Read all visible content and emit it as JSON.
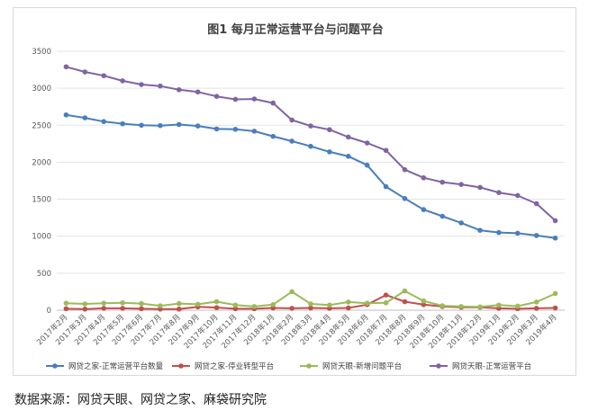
{
  "chart_data": {
    "type": "line",
    "title": "图1   每月正常运营平台与问题平台",
    "xlabel": "",
    "ylabel": "",
    "ylim": [
      0,
      3500
    ],
    "yticks": [
      0,
      500,
      1000,
      1500,
      2000,
      2500,
      3000,
      3500
    ],
    "grid": true,
    "legend_position": "bottom",
    "categories": [
      "2017年2月",
      "2017年3月",
      "2017年4月",
      "2017年5月",
      "2017年6月",
      "2017年7月",
      "2017年8月",
      "2017年9月",
      "2017年10月",
      "2017年11月",
      "2017年12月",
      "2018年1月",
      "2018年2月",
      "2018年3月",
      "2018年4月",
      "2018年5月",
      "2018年6月",
      "2018年7月",
      "2018年8月",
      "2018年9月",
      "2018年10月",
      "2018年11月",
      "2018年12月",
      "2019年1月",
      "2019年2月",
      "2019年3月",
      "2019年4月"
    ],
    "series": [
      {
        "name": "网贷之家-正常运营平台数量",
        "color": "#4a7ebb",
        "values": [
          2640,
          2600,
          2550,
          2520,
          2500,
          2495,
          2510,
          2490,
          2450,
          2445,
          2420,
          2350,
          2285,
          2215,
          2140,
          2080,
          1960,
          1670,
          1510,
          1360,
          1270,
          1180,
          1080,
          1050,
          1040,
          1010,
          975
        ]
      },
      {
        "name": "网贷之家-停业转型平台",
        "color": "#c0504d",
        "values": [
          20,
          15,
          25,
          25,
          20,
          15,
          15,
          45,
          35,
          20,
          20,
          30,
          25,
          30,
          25,
          30,
          75,
          205,
          115,
          75,
          50,
          40,
          40,
          25,
          20,
          25,
          30
        ]
      },
      {
        "name": "网贷天眼-新增问题平台",
        "color": "#9bbb59",
        "values": [
          95,
          85,
          95,
          100,
          90,
          60,
          90,
          80,
          115,
          70,
          50,
          75,
          250,
          85,
          70,
          110,
          95,
          100,
          260,
          125,
          60,
          50,
          45,
          70,
          55,
          110,
          225
        ]
      },
      {
        "name": "网贷天眼-正常运营平台",
        "color": "#8064a2",
        "values": [
          3290,
          3220,
          3170,
          3100,
          3050,
          3030,
          2980,
          2950,
          2890,
          2850,
          2855,
          2800,
          2570,
          2490,
          2440,
          2340,
          2260,
          2160,
          1900,
          1790,
          1730,
          1700,
          1660,
          1590,
          1550,
          1440,
          1210
        ]
      }
    ]
  },
  "footer": {
    "source": "数据来源：网贷天眼、网贷之家、麻袋研究院"
  }
}
